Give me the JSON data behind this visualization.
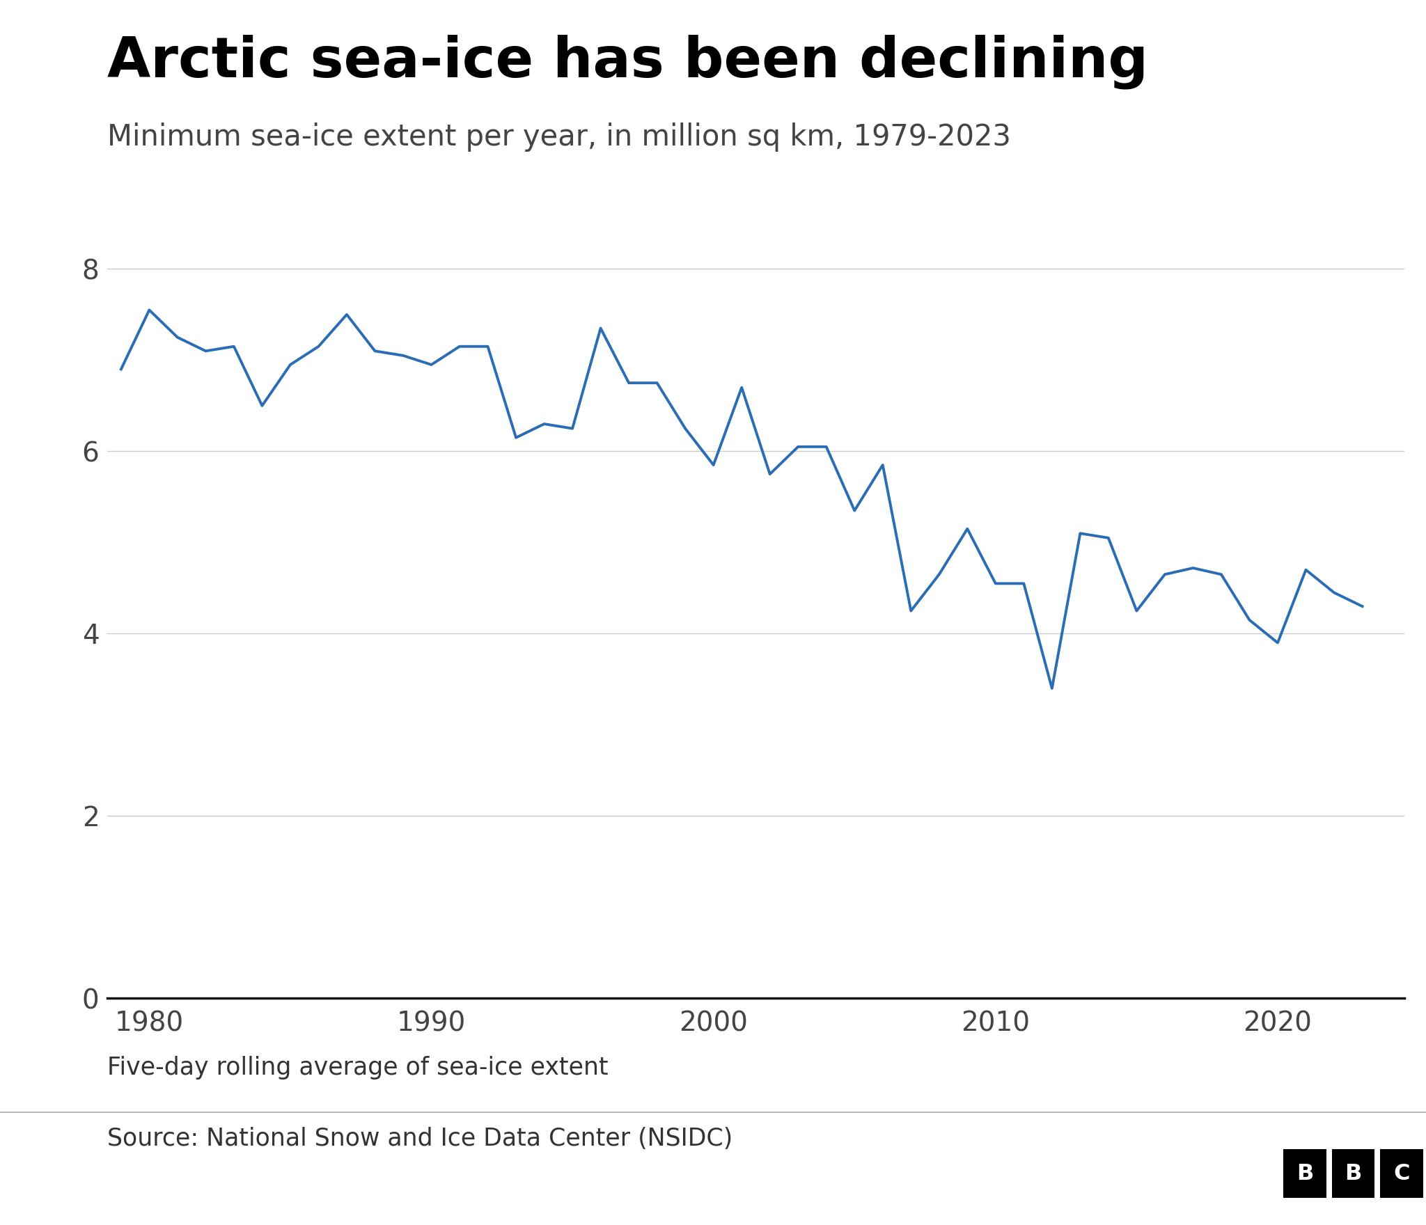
{
  "title": "Arctic sea-ice has been declining",
  "subtitle": "Minimum sea-ice extent per year, in million sq km, 1979-2023",
  "footnote": "Five-day rolling average of sea-ice extent",
  "source": "Source: National Snow and Ice Data Center (NSIDC)",
  "line_color": "#2a6db5",
  "background_color": "#ffffff",
  "years": [
    1979,
    1980,
    1981,
    1982,
    1983,
    1984,
    1985,
    1986,
    1987,
    1988,
    1989,
    1990,
    1991,
    1992,
    1993,
    1994,
    1995,
    1996,
    1997,
    1998,
    1999,
    2000,
    2001,
    2002,
    2003,
    2004,
    2005,
    2006,
    2007,
    2008,
    2009,
    2010,
    2011,
    2012,
    2013,
    2014,
    2015,
    2016,
    2017,
    2018,
    2019,
    2020,
    2021,
    2022,
    2023
  ],
  "values": [
    6.9,
    7.55,
    7.25,
    7.1,
    7.15,
    6.5,
    6.95,
    7.15,
    7.5,
    7.1,
    7.05,
    6.95,
    7.15,
    7.15,
    6.15,
    6.3,
    6.25,
    7.35,
    6.75,
    6.75,
    6.25,
    5.85,
    6.7,
    5.75,
    6.05,
    6.05,
    5.35,
    5.85,
    4.25,
    4.65,
    5.15,
    4.55,
    4.55,
    3.4,
    5.1,
    5.05,
    4.25,
    4.65,
    4.72,
    4.65,
    4.15,
    3.9,
    4.7,
    4.45,
    4.3
  ],
  "ylim": [
    0,
    8.8
  ],
  "yticks": [
    0,
    2,
    4,
    6,
    8
  ],
  "xlim": [
    1978.5,
    2024.5
  ],
  "xticks": [
    1980,
    1990,
    2000,
    2010,
    2020
  ],
  "title_fontsize": 58,
  "subtitle_fontsize": 30,
  "tick_fontsize": 28,
  "footnote_fontsize": 25,
  "source_fontsize": 25
}
